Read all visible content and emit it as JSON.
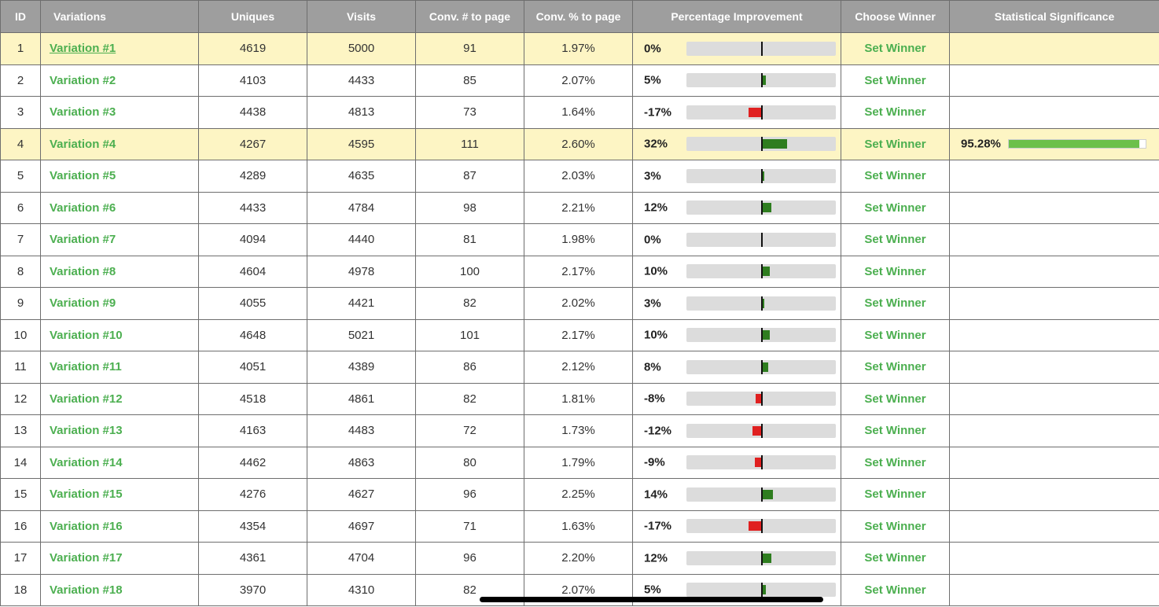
{
  "headers": {
    "id": "ID",
    "variations": "Variations",
    "uniques": "Uniques",
    "visits": "Visits",
    "conv_count": "Conv. # to page",
    "conv_pct": "Conv. % to page",
    "improvement": "Percentage Improvement",
    "choose_winner": "Choose Winner",
    "significance": "Statistical Significance"
  },
  "colors": {
    "positive_bar": "#2e7d1f",
    "negative_bar": "#e02020",
    "link_green": "#4caf50",
    "highlight_row": "#fdf5c4",
    "header_bg": "#9e9e9e"
  },
  "rows": [
    {
      "id": "1",
      "name": "Variation #1",
      "uniques": "4619",
      "visits": "5000",
      "conv": "91",
      "conv_pct": "1.97%",
      "improvement": "0%",
      "improvement_value": 0,
      "action": "Set Winner",
      "significance": "",
      "significance_value": null,
      "highlighted": true,
      "underlined": true
    },
    {
      "id": "2",
      "name": "Variation #2",
      "uniques": "4103",
      "visits": "4433",
      "conv": "85",
      "conv_pct": "2.07%",
      "improvement": "5%",
      "improvement_value": 5,
      "action": "Set Winner",
      "significance": "",
      "significance_value": null,
      "highlighted": false,
      "underlined": false
    },
    {
      "id": "3",
      "name": "Variation #3",
      "uniques": "4438",
      "visits": "4813",
      "conv": "73",
      "conv_pct": "1.64%",
      "improvement": "-17%",
      "improvement_value": -17,
      "action": "Set Winner",
      "significance": "",
      "significance_value": null,
      "highlighted": false,
      "underlined": false
    },
    {
      "id": "4",
      "name": "Variation #4",
      "uniques": "4267",
      "visits": "4595",
      "conv": "111",
      "conv_pct": "2.60%",
      "improvement": "32%",
      "improvement_value": 32,
      "action": "Set Winner",
      "significance": "95.28%",
      "significance_value": 95.28,
      "highlighted": true,
      "underlined": false
    },
    {
      "id": "5",
      "name": "Variation #5",
      "uniques": "4289",
      "visits": "4635",
      "conv": "87",
      "conv_pct": "2.03%",
      "improvement": "3%",
      "improvement_value": 3,
      "action": "Set Winner",
      "significance": "",
      "significance_value": null,
      "highlighted": false,
      "underlined": false
    },
    {
      "id": "6",
      "name": "Variation #6",
      "uniques": "4433",
      "visits": "4784",
      "conv": "98",
      "conv_pct": "2.21%",
      "improvement": "12%",
      "improvement_value": 12,
      "action": "Set Winner",
      "significance": "",
      "significance_value": null,
      "highlighted": false,
      "underlined": false
    },
    {
      "id": "7",
      "name": "Variation #7",
      "uniques": "4094",
      "visits": "4440",
      "conv": "81",
      "conv_pct": "1.98%",
      "improvement": "0%",
      "improvement_value": 0,
      "action": "Set Winner",
      "significance": "",
      "significance_value": null,
      "highlighted": false,
      "underlined": false
    },
    {
      "id": "8",
      "name": "Variation #8",
      "uniques": "4604",
      "visits": "4978",
      "conv": "100",
      "conv_pct": "2.17%",
      "improvement": "10%",
      "improvement_value": 10,
      "action": "Set Winner",
      "significance": "",
      "significance_value": null,
      "highlighted": false,
      "underlined": false
    },
    {
      "id": "9",
      "name": "Variation #9",
      "uniques": "4055",
      "visits": "4421",
      "conv": "82",
      "conv_pct": "2.02%",
      "improvement": "3%",
      "improvement_value": 3,
      "action": "Set Winner",
      "significance": "",
      "significance_value": null,
      "highlighted": false,
      "underlined": false
    },
    {
      "id": "10",
      "name": "Variation #10",
      "uniques": "4648",
      "visits": "5021",
      "conv": "101",
      "conv_pct": "2.17%",
      "improvement": "10%",
      "improvement_value": 10,
      "action": "Set Winner",
      "significance": "",
      "significance_value": null,
      "highlighted": false,
      "underlined": false
    },
    {
      "id": "11",
      "name": "Variation #11",
      "uniques": "4051",
      "visits": "4389",
      "conv": "86",
      "conv_pct": "2.12%",
      "improvement": "8%",
      "improvement_value": 8,
      "action": "Set Winner",
      "significance": "",
      "significance_value": null,
      "highlighted": false,
      "underlined": false
    },
    {
      "id": "12",
      "name": "Variation #12",
      "uniques": "4518",
      "visits": "4861",
      "conv": "82",
      "conv_pct": "1.81%",
      "improvement": "-8%",
      "improvement_value": -8,
      "action": "Set Winner",
      "significance": "",
      "significance_value": null,
      "highlighted": false,
      "underlined": false
    },
    {
      "id": "13",
      "name": "Variation #13",
      "uniques": "4163",
      "visits": "4483",
      "conv": "72",
      "conv_pct": "1.73%",
      "improvement": "-12%",
      "improvement_value": -12,
      "action": "Set Winner",
      "significance": "",
      "significance_value": null,
      "highlighted": false,
      "underlined": false
    },
    {
      "id": "14",
      "name": "Variation #14",
      "uniques": "4462",
      "visits": "4863",
      "conv": "80",
      "conv_pct": "1.79%",
      "improvement": "-9%",
      "improvement_value": -9,
      "action": "Set Winner",
      "significance": "",
      "significance_value": null,
      "highlighted": false,
      "underlined": false
    },
    {
      "id": "15",
      "name": "Variation #15",
      "uniques": "4276",
      "visits": "4627",
      "conv": "96",
      "conv_pct": "2.25%",
      "improvement": "14%",
      "improvement_value": 14,
      "action": "Set Winner",
      "significance": "",
      "significance_value": null,
      "highlighted": false,
      "underlined": false
    },
    {
      "id": "16",
      "name": "Variation #16",
      "uniques": "4354",
      "visits": "4697",
      "conv": "71",
      "conv_pct": "1.63%",
      "improvement": "-17%",
      "improvement_value": -17,
      "action": "Set Winner",
      "significance": "",
      "significance_value": null,
      "highlighted": false,
      "underlined": false
    },
    {
      "id": "17",
      "name": "Variation #17",
      "uniques": "4361",
      "visits": "4704",
      "conv": "96",
      "conv_pct": "2.20%",
      "improvement": "12%",
      "improvement_value": 12,
      "action": "Set Winner",
      "significance": "",
      "significance_value": null,
      "highlighted": false,
      "underlined": false
    },
    {
      "id": "18",
      "name": "Variation #18",
      "uniques": "3970",
      "visits": "4310",
      "conv": "82",
      "conv_pct": "2.07%",
      "improvement": "5%",
      "improvement_value": 5,
      "action": "Set Winner",
      "significance": "",
      "significance_value": null,
      "highlighted": false,
      "underlined": false
    }
  ]
}
